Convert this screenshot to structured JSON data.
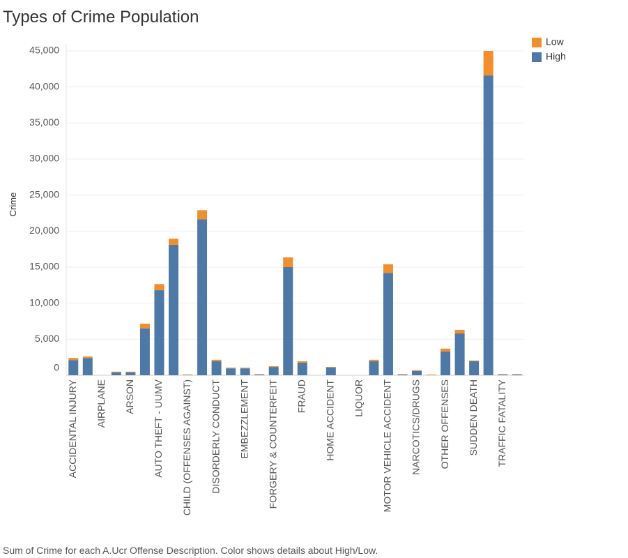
{
  "chart_data": {
    "type": "stacked_bar",
    "title": "Types of Crime Population",
    "y_label": "Crime",
    "footer": "Sum of Crime for each A.Ucr Offense Description.  Color shows details about High/Low.",
    "categories": [
      "ACCIDENTAL INJURY",
      null,
      "AIRPLANE",
      null,
      "ARSON",
      null,
      "AUTO THEFT - UUMV",
      null,
      "CHILD (OFFENSES AGAINST)",
      null,
      "DISORDERLY CONDUCT",
      null,
      "EMBEZZLEMENT",
      null,
      "FORGERY & COUNTERFEIT",
      null,
      "FRAUD",
      null,
      "HOME ACCIDENT",
      null,
      "LIQUOR",
      null,
      "MOTOR VEHICLE ACCIDENT",
      null,
      "NARCOTICS/DRUGS",
      null,
      "OTHER OFFENSES",
      null,
      "SUDDEN DEATH",
      null,
      "TRAFFIC FATALITY",
      null
    ],
    "series": [
      {
        "name": "High",
        "color": "#4e79a7",
        "values": [
          2100,
          2400,
          10,
          400,
          400,
          6500,
          11800,
          18100,
          50,
          21650,
          1950,
          950,
          950,
          100,
          1150,
          15000,
          1750,
          0,
          1060,
          0,
          0,
          1950,
          14200,
          100,
          600,
          0,
          3300,
          5800,
          1950,
          41600,
          100,
          100
        ]
      },
      {
        "name": "Low",
        "color": "#f28e2b",
        "values": [
          300,
          200,
          0,
          100,
          100,
          650,
          850,
          850,
          50,
          1250,
          200,
          100,
          100,
          50,
          100,
          1350,
          200,
          0,
          100,
          0,
          0,
          200,
          1200,
          50,
          100,
          100,
          400,
          500,
          100,
          3400,
          50,
          50
        ]
      }
    ],
    "ylim": [
      0,
      45000
    ],
    "yticks": [
      0,
      {
        "value": 5000,
        "label": "5,000"
      },
      {
        "value": 10000,
        "label": "10,000"
      },
      {
        "value": 15000,
        "label": "15,000"
      },
      {
        "value": 20000,
        "label": "20,000"
      },
      {
        "value": 25000,
        "label": "25,000"
      },
      {
        "value": 30000,
        "label": "30,000"
      },
      {
        "value": 35000,
        "label": "35,000"
      },
      {
        "value": 40000,
        "label": "40,000"
      },
      {
        "value": 45000,
        "label": "45,000"
      }
    ],
    "grid": true,
    "legend": "top-right"
  }
}
